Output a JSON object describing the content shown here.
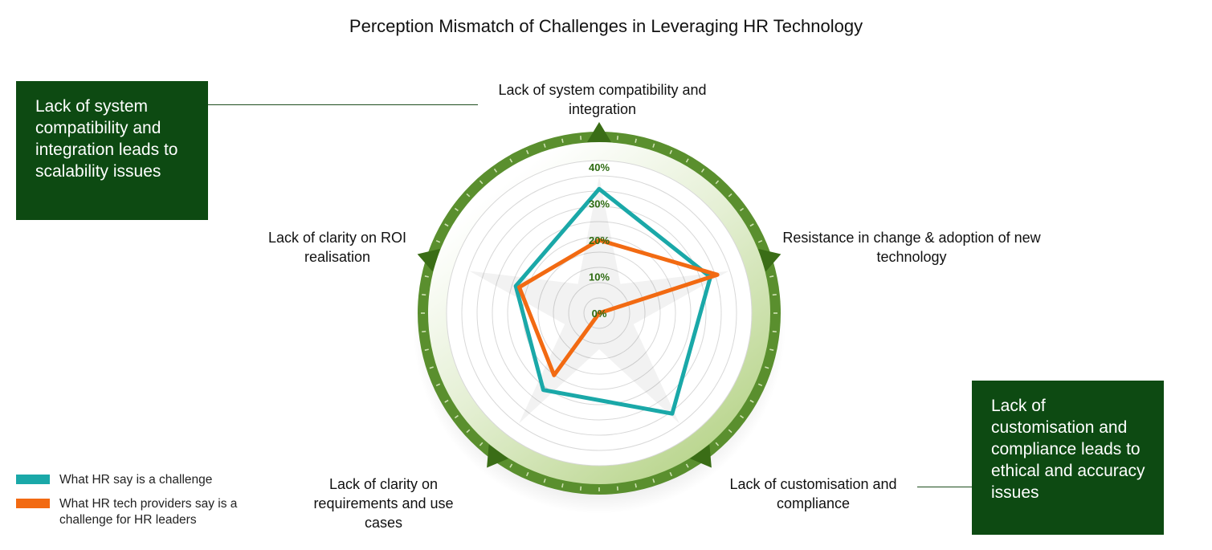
{
  "title": "Perception Mismatch of Challenges in Leveraging HR Technology",
  "callouts": {
    "left": "Lack of system compatibility and integration leads to scalability issues",
    "right": "Lack of customisation and compliance leads to ethical and accuracy issues"
  },
  "colors": {
    "hr": "#1aa8a8",
    "providers": "#f26a12",
    "ring": "#5a8f2e",
    "callout_bg": "#0d4a12",
    "tick_label": "#2e6b12"
  },
  "chart_data": {
    "type": "radar",
    "title": "Perception Mismatch of Challenges in Leveraging HR Technology",
    "axes": [
      "Lack of system compatibility and integration",
      "Resistance in change & adoption of new technology",
      "Lack of customisation and compliance",
      "Lack of clarity on requirements and use cases",
      "Lack of clarity on ROI realisation"
    ],
    "ticks": [
      "0%",
      "10%",
      "20%",
      "30%",
      "40%"
    ],
    "rmax": 40,
    "series": [
      {
        "name": "What HR say is a challenge",
        "color": "#1aa8a8",
        "values": [
          34,
          32,
          34,
          26,
          24
        ]
      },
      {
        "name": "What HR tech providers say is a challenge for HR leaders",
        "color": "#f26a12",
        "values": [
          20,
          34,
          0,
          21,
          23
        ]
      }
    ],
    "legend_position": "bottom-left"
  }
}
